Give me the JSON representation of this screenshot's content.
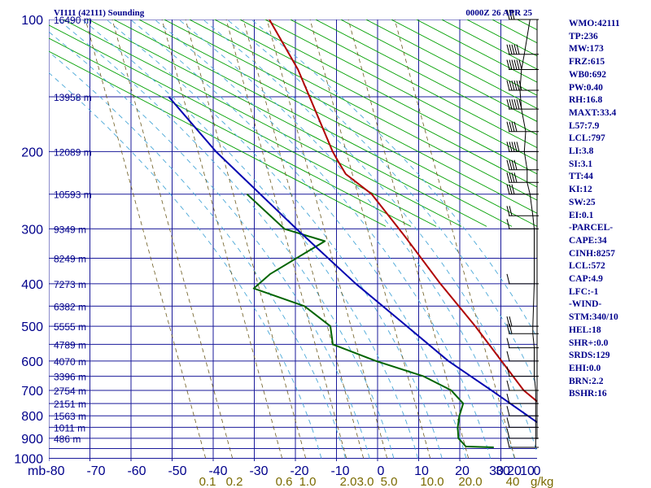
{
  "header": {
    "station_title": "VI111 (42111) Sounding",
    "time_label": "0000Z 26 APR 25"
  },
  "indices": [
    "WMO:42111",
    "TP:236",
    "MW:173",
    "FRZ:615",
    "WB0:692",
    "PW:0.40",
    "RH:16.8",
    "MAXT:33.4",
    "L57:7.9",
    "LCL:797",
    "LI:3.8",
    "SI:3.1",
    "TT:44",
    "KI:12",
    "SW:25",
    "EI:0.1",
    "-PARCEL-",
    "CAPE:34",
    "CINH:8257",
    "LCL:572",
    "CAP:4.9",
    "LFC:-1",
    "-WIND-",
    "STM:340/10",
    "HEL:18",
    "SHR+:0.0",
    "SRDS:129",
    "EHI:0.0",
    "BRN:2.2",
    "BSHR:16"
  ],
  "axes": {
    "pressure_unit": "mb",
    "mixing_ratio_unit": "g/kg"
  },
  "chart_data": {
    "type": "line",
    "title": "VI111 (42111) Sounding",
    "xlabel": "",
    "ylabel": "mb",
    "y_scale": "log",
    "ylim": [
      1000,
      100
    ],
    "xlim": [
      -80,
      30
    ],
    "grid": true,
    "pressure_ticks": [
      "100",
      "200",
      "300",
      "400",
      "500",
      "600",
      "700",
      "800",
      "900",
      "1000"
    ],
    "height_labels": [
      {
        "p": 100,
        "label": "16490 m"
      },
      {
        "p": 150,
        "label": "13958 m"
      },
      {
        "p": 200,
        "label": "12089 m"
      },
      {
        "p": 250,
        "label": "10593 m"
      },
      {
        "p": 300,
        "label": "9349 m"
      },
      {
        "p": 350,
        "label": "8249 m"
      },
      {
        "p": 400,
        "label": "7273 m"
      },
      {
        "p": 450,
        "label": "6382 m"
      },
      {
        "p": 500,
        "label": "5555 m"
      },
      {
        "p": 550,
        "label": "4789 m"
      },
      {
        "p": 600,
        "label": "4070 m"
      },
      {
        "p": 650,
        "label": "3396 m"
      },
      {
        "p": 700,
        "label": "2754 m"
      },
      {
        "p": 750,
        "label": "2151 m"
      },
      {
        "p": 800,
        "label": "1563 m"
      },
      {
        "p": 850,
        "label": "1011 m"
      },
      {
        "p": 900,
        "label": "486 m"
      }
    ],
    "temperature_ticks": [
      "-80",
      "-70",
      "-60",
      "-50",
      "-40",
      "-30",
      "-20",
      "-10",
      "0",
      "10",
      "20",
      "30"
    ],
    "mixing_ratio_labels": [
      "0.1",
      "0.2",
      "0.6",
      "1.0",
      "2.0",
      "3.0",
      "5.0",
      "10.0",
      "20.0",
      "40"
    ],
    "wind_speed_ticks": [
      "0",
      "10",
      "20",
      "30"
    ],
    "series": [
      {
        "color": "#b00000",
        "points": [
          {
            "p": 944,
            "t": 23.0
          },
          {
            "p": 940,
            "t": 28.5
          },
          {
            "p": 920,
            "t": 30.0
          },
          {
            "p": 850,
            "t": 25.0
          },
          {
            "p": 700,
            "t": 11.0
          },
          {
            "p": 500,
            "t": -6.0
          },
          {
            "p": 400,
            "t": -18.0
          },
          {
            "p": 315,
            "t": -30.0
          },
          {
            "p": 250,
            "t": -42.0
          },
          {
            "p": 225,
            "t": -50.0
          },
          {
            "p": 210,
            "t": -53.0
          },
          {
            "p": 200,
            "t": -55.0
          },
          {
            "p": 150,
            "t": -65.0
          },
          {
            "p": 130,
            "t": -70.0
          },
          {
            "p": 100,
            "t": -81.0
          }
        ]
      },
      {
        "color": "#006400",
        "points": [
          {
            "p": 944,
            "t": 8.0
          },
          {
            "p": 940,
            "t": 1.0
          },
          {
            "p": 900,
            "t": -1.5
          },
          {
            "p": 850,
            "t": -2.5
          },
          {
            "p": 800,
            "t": -3.0
          },
          {
            "p": 750,
            "t": -3.0
          },
          {
            "p": 700,
            "t": -7.0
          },
          {
            "p": 650,
            "t": -15.0
          },
          {
            "p": 600,
            "t": -28.0
          },
          {
            "p": 550,
            "t": -40.0
          },
          {
            "p": 500,
            "t": -42.0
          },
          {
            "p": 450,
            "t": -50.0
          },
          {
            "p": 410,
            "t": -64.0
          },
          {
            "p": 380,
            "t": -61.0
          },
          {
            "p": 320,
            "t": -50.0
          },
          {
            "p": 300,
            "t": -61.0
          },
          {
            "p": 250,
            "t": -73.0
          }
        ]
      },
      {
        "color": "#0000b0",
        "points": [
          {
            "p": 944,
            "t": 31.0
          },
          {
            "p": 900,
            "t": 25.0
          },
          {
            "p": 850,
            "t": 19.0
          },
          {
            "p": 700,
            "t": 3.0
          },
          {
            "p": 600,
            "t": -10.0
          },
          {
            "p": 500,
            "t": -23.0
          },
          {
            "p": 400,
            "t": -39.0
          },
          {
            "p": 300,
            "t": -58.0
          },
          {
            "p": 200,
            "t": -84.0
          },
          {
            "p": 150,
            "t": -100.0
          }
        ]
      }
    ],
    "winds": [
      {
        "p": 100,
        "dir": 270,
        "spd": 25
      },
      {
        "p": 120,
        "dir": 270,
        "spd": 45
      },
      {
        "p": 130,
        "dir": 268,
        "spd": 55
      },
      {
        "p": 145,
        "dir": 270,
        "spd": 60
      },
      {
        "p": 160,
        "dir": 270,
        "spd": 55
      },
      {
        "p": 180,
        "dir": 272,
        "spd": 40
      },
      {
        "p": 200,
        "dir": 275,
        "spd": 45
      },
      {
        "p": 220,
        "dir": 280,
        "spd": 35
      },
      {
        "p": 235,
        "dir": 282,
        "spd": 35
      },
      {
        "p": 250,
        "dir": 280,
        "spd": 25
      },
      {
        "p": 280,
        "dir": 280,
        "spd": 15
      },
      {
        "p": 300,
        "dir": 280,
        "spd": 10
      },
      {
        "p": 400,
        "dir": 270,
        "spd": 10
      },
      {
        "p": 500,
        "dir": 90,
        "spd": 15
      },
      {
        "p": 520,
        "dir": 95,
        "spd": 15
      },
      {
        "p": 560,
        "dir": 100,
        "spd": 10
      },
      {
        "p": 600,
        "dir": 110,
        "spd": 10
      },
      {
        "p": 650,
        "dir": 120,
        "spd": 10
      },
      {
        "p": 700,
        "dir": 140,
        "spd": 5
      },
      {
        "p": 750,
        "dir": 160,
        "spd": 5
      },
      {
        "p": 800,
        "dir": 180,
        "spd": 5
      },
      {
        "p": 850,
        "dir": 200,
        "spd": 5
      },
      {
        "p": 900,
        "dir": 340,
        "spd": 5
      },
      {
        "p": 944,
        "dir": 20,
        "spd": 5
      }
    ],
    "colors": {
      "grid": "#1a1a9a",
      "dry_adiabat": "#00a000",
      "moist_adiabat": "#4aa8d8",
      "mixing_ratio": "#6b5a1e"
    }
  }
}
